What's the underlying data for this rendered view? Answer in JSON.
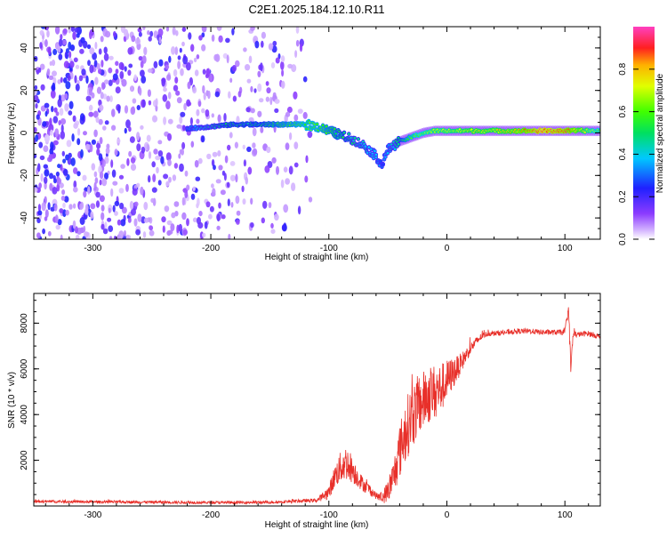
{
  "title": "C2E1.2025.184.12.10.R11",
  "colorbar": {
    "label": "Normalized spectral amplitude",
    "ticks": [
      "0.0",
      "0.2",
      "0.4",
      "0.6",
      "0.8"
    ],
    "tick_values": [
      0.0,
      0.2,
      0.4,
      0.6,
      0.8
    ]
  },
  "chart_data": [
    {
      "type": "heatmap",
      "xlabel": "Height of straight line (km)",
      "ylabel": "Frequency (Hz)",
      "xlim": [
        -350,
        130
      ],
      "ylim": [
        -50,
        50
      ],
      "xticks": [
        -300,
        -200,
        -100,
        0,
        100
      ],
      "xtick_labels": [
        "-300",
        "-200",
        "-100",
        "0",
        "100"
      ],
      "yticks": [
        -40,
        -20,
        0,
        20,
        40
      ],
      "ytick_labels": [
        "-40",
        "-20",
        "0",
        "20",
        "40"
      ],
      "value_range": [
        0,
        1
      ],
      "colormap": "rainbow (white-violet-blue-cyan-green-yellow-red-pink)",
      "noise_region_x": [
        -350,
        -115
      ],
      "main_ridge": {
        "x": [
          -220,
          -200,
          -180,
          -160,
          -140,
          -120,
          -110,
          -100,
          -90,
          -80,
          -70,
          -60,
          -55,
          -50,
          -40,
          -30,
          -20,
          -10,
          0,
          20,
          40,
          60,
          80,
          100,
          120,
          130
        ],
        "freq": [
          2,
          3,
          4,
          4,
          4,
          4,
          3,
          1,
          -1,
          -3,
          -6,
          -11,
          -15,
          -8,
          -4,
          -2,
          0,
          1,
          1,
          1,
          1,
          1,
          1,
          1,
          1,
          1
        ],
        "amplitude": [
          0.3,
          0.45,
          0.5,
          0.5,
          0.55,
          0.6,
          0.6,
          0.55,
          0.5,
          0.45,
          0.4,
          0.35,
          0.3,
          0.35,
          0.5,
          0.6,
          0.65,
          0.7,
          0.7,
          0.75,
          0.75,
          0.8,
          0.95,
          0.9,
          0.7,
          0.6
        ]
      }
    },
    {
      "type": "line",
      "xlabel": "Height of straight line (km)",
      "ylabel": "SNR (10 * v/v)",
      "xlim": [
        -350,
        130
      ],
      "ylim": [
        0,
        9300
      ],
      "xticks": [
        -300,
        -200,
        -100,
        0,
        100
      ],
      "xtick_labels": [
        "-300",
        "-200",
        "-100",
        "0",
        "100"
      ],
      "yticks": [
        2000,
        4000,
        6000,
        8000
      ],
      "ytick_labels": [
        "2000",
        "4000",
        "6000",
        "8000"
      ],
      "color": "#e8302a",
      "series": [
        {
          "x": [
            -350,
            -300,
            -250,
            -200,
            -150,
            -110,
            -100,
            -95,
            -90,
            -85,
            -80,
            -75,
            -70,
            -65,
            -60,
            -55,
            -50,
            -45,
            -40,
            -35,
            -30,
            -25,
            -20,
            -15,
            -10,
            -5,
            0,
            5,
            10,
            15,
            20,
            25,
            30,
            35,
            40,
            50,
            60,
            70,
            80,
            90,
            100,
            103,
            105,
            107,
            110,
            120,
            130
          ],
          "y": [
            200,
            180,
            170,
            150,
            160,
            250,
            600,
            1300,
            1700,
            1900,
            1600,
            1200,
            900,
            700,
            450,
            350,
            650,
            1300,
            2400,
            3300,
            3900,
            4300,
            4600,
            4900,
            5000,
            5150,
            5500,
            5800,
            6100,
            6500,
            6900,
            7200,
            7450,
            7550,
            7550,
            7600,
            7650,
            7650,
            7600,
            7600,
            7600,
            8700,
            6000,
            7500,
            7500,
            7550,
            7400
          ],
          "noise_amplitude": [
            60,
            60,
            60,
            60,
            60,
            80,
            300,
            500,
            700,
            800,
            600,
            400,
            300,
            250,
            150,
            250,
            500,
            800,
            1200,
            1400,
            1400,
            1400,
            1300,
            1300,
            1200,
            1100,
            900,
            700,
            500,
            350,
            250,
            200,
            150,
            120,
            120,
            120,
            120,
            120,
            120,
            120,
            120,
            300,
            300,
            200,
            120,
            120,
            120
          ]
        }
      ]
    }
  ]
}
